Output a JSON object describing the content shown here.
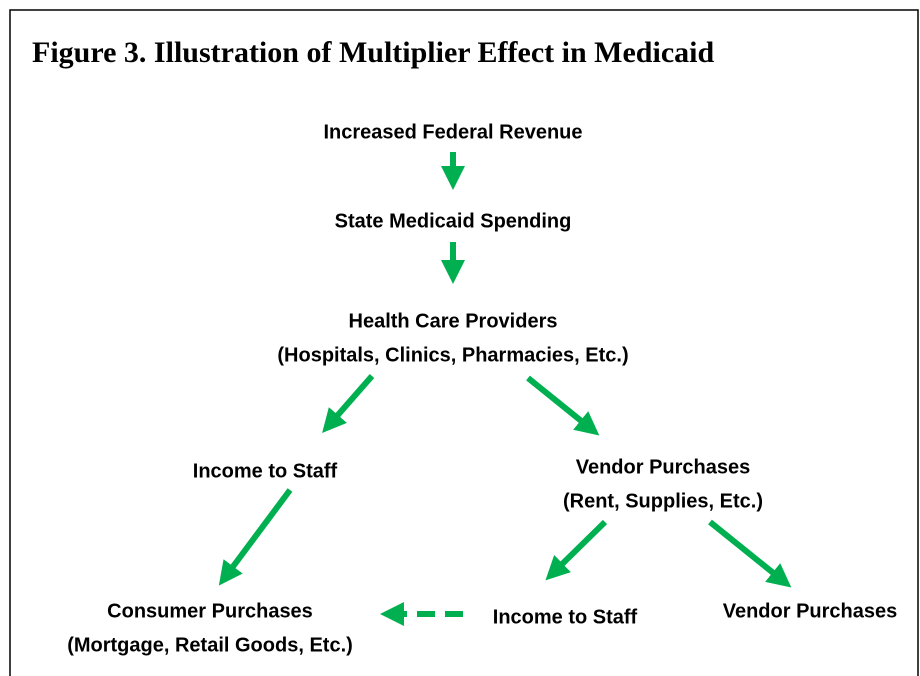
{
  "title": "Figure 3.  Illustration of Multiplier Effect in Medicaid",
  "nodes": [
    {
      "lines": [
        "Increased Federal Revenue"
      ]
    },
    {
      "lines": [
        "State Medicaid Spending"
      ]
    },
    {
      "lines": [
        "Health Care Providers",
        "(Hospitals, Clinics, Pharmacies, Etc.)"
      ]
    },
    {
      "lines": [
        "Income to Staff"
      ]
    },
    {
      "lines": [
        "Vendor Purchases",
        "(Rent, Supplies, Etc.)"
      ]
    },
    {
      "lines": [
        "Consumer Purchases",
        "(Mortgage, Retail Goods, Etc.)"
      ]
    },
    {
      "lines": [
        "Income to Staff"
      ]
    },
    {
      "lines": [
        "Vendor Purchases"
      ]
    }
  ]
}
